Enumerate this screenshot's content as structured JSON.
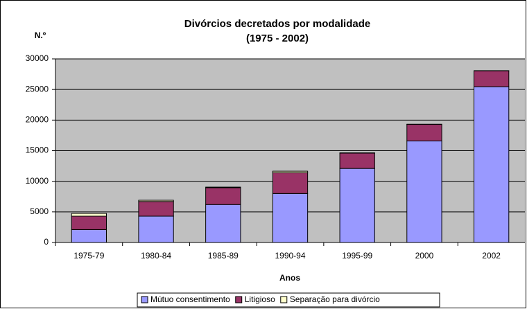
{
  "chart_data": {
    "type": "bar",
    "stacked": true,
    "title": "Divórcios decretados por modalidade",
    "subtitle": "(1975 - 2002)",
    "y_label": "N.º",
    "x_label": "Anos",
    "categories": [
      "1975-79",
      "1980-84",
      "1985-89",
      "1990-94",
      "1995-99",
      "2000",
      "2002"
    ],
    "series": [
      {
        "name": "Mútuo consentimento",
        "color": "#9999ff",
        "values": [
          2100,
          4300,
          6200,
          8000,
          12100,
          16600,
          25450
        ]
      },
      {
        "name": "Litigioso",
        "color": "#993366",
        "values": [
          2200,
          2400,
          2750,
          3400,
          2500,
          2700,
          2600
        ]
      },
      {
        "name": "Separação para divórcio",
        "color": "#ffffcc",
        "values": [
          450,
          200,
          100,
          250,
          50,
          30,
          30
        ]
      }
    ],
    "ylim": [
      0,
      30000
    ],
    "yticks": [
      0,
      5000,
      10000,
      15000,
      20000,
      25000,
      30000
    ],
    "grid": true,
    "legend": "bottom"
  }
}
